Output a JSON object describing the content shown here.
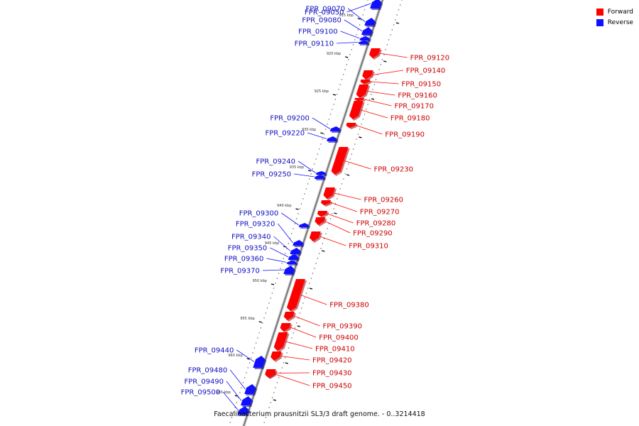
{
  "legend": {
    "forward_label": "Forward",
    "reverse_label": "Reverse",
    "forward_color": "#ff0000",
    "reverse_color": "#1010ff"
  },
  "caption": "Faecalibacterium prausnitzii SL3/3 draft genome. - 0..3214418",
  "ticks": [
    {
      "label": "915 kbp"
    },
    {
      "label": "920 kbp"
    },
    {
      "label": "925 kbp"
    },
    {
      "label": "930 kbp"
    },
    {
      "label": "935 kbp"
    },
    {
      "label": "940 kbp"
    },
    {
      "label": "945 kbp"
    },
    {
      "label": "950 kbp"
    },
    {
      "label": "955 kbp"
    },
    {
      "label": "960 kbp"
    },
    {
      "label": "965 kbp"
    }
  ],
  "genes": [
    {
      "name": "FPR_09050",
      "strand": "reverse"
    },
    {
      "name": "FPR_09070",
      "strand": "reverse"
    },
    {
      "name": "FPR_09080",
      "strand": "reverse"
    },
    {
      "name": "FPR_09100",
      "strand": "reverse"
    },
    {
      "name": "FPR_09110",
      "strand": "reverse"
    },
    {
      "name": "FPR_09120",
      "strand": "forward"
    },
    {
      "name": "FPR_09140",
      "strand": "forward"
    },
    {
      "name": "FPR_09150",
      "strand": "forward"
    },
    {
      "name": "FPR_09160",
      "strand": "forward"
    },
    {
      "name": "FPR_09170",
      "strand": "forward"
    },
    {
      "name": "FPR_09180",
      "strand": "forward"
    },
    {
      "name": "FPR_09190",
      "strand": "forward"
    },
    {
      "name": "FPR_09200",
      "strand": "reverse"
    },
    {
      "name": "FPR_09220",
      "strand": "reverse"
    },
    {
      "name": "FPR_09230",
      "strand": "forward"
    },
    {
      "name": "FPR_09240",
      "strand": "reverse"
    },
    {
      "name": "FPR_09250",
      "strand": "reverse"
    },
    {
      "name": "FPR_09260",
      "strand": "forward"
    },
    {
      "name": "FPR_09270",
      "strand": "forward"
    },
    {
      "name": "FPR_09280",
      "strand": "forward"
    },
    {
      "name": "FPR_09290",
      "strand": "forward"
    },
    {
      "name": "FPR_09300",
      "strand": "reverse"
    },
    {
      "name": "FPR_09310",
      "strand": "forward"
    },
    {
      "name": "FPR_09320",
      "strand": "reverse"
    },
    {
      "name": "FPR_09340",
      "strand": "reverse"
    },
    {
      "name": "FPR_09350",
      "strand": "reverse"
    },
    {
      "name": "FPR_09360",
      "strand": "reverse"
    },
    {
      "name": "FPR_09370",
      "strand": "reverse"
    },
    {
      "name": "FPR_09380",
      "strand": "forward"
    },
    {
      "name": "FPR_09390",
      "strand": "forward"
    },
    {
      "name": "FPR_09400",
      "strand": "forward"
    },
    {
      "name": "FPR_09410",
      "strand": "forward"
    },
    {
      "name": "FPR_09420",
      "strand": "forward"
    },
    {
      "name": "FPR_09430",
      "strand": "forward"
    },
    {
      "name": "FPR_09440",
      "strand": "reverse"
    },
    {
      "name": "FPR_09450",
      "strand": "forward"
    },
    {
      "name": "FPR_09480",
      "strand": "reverse"
    },
    {
      "name": "FPR_09490",
      "strand": "reverse"
    },
    {
      "name": "FPR_09500",
      "strand": "reverse"
    }
  ]
}
